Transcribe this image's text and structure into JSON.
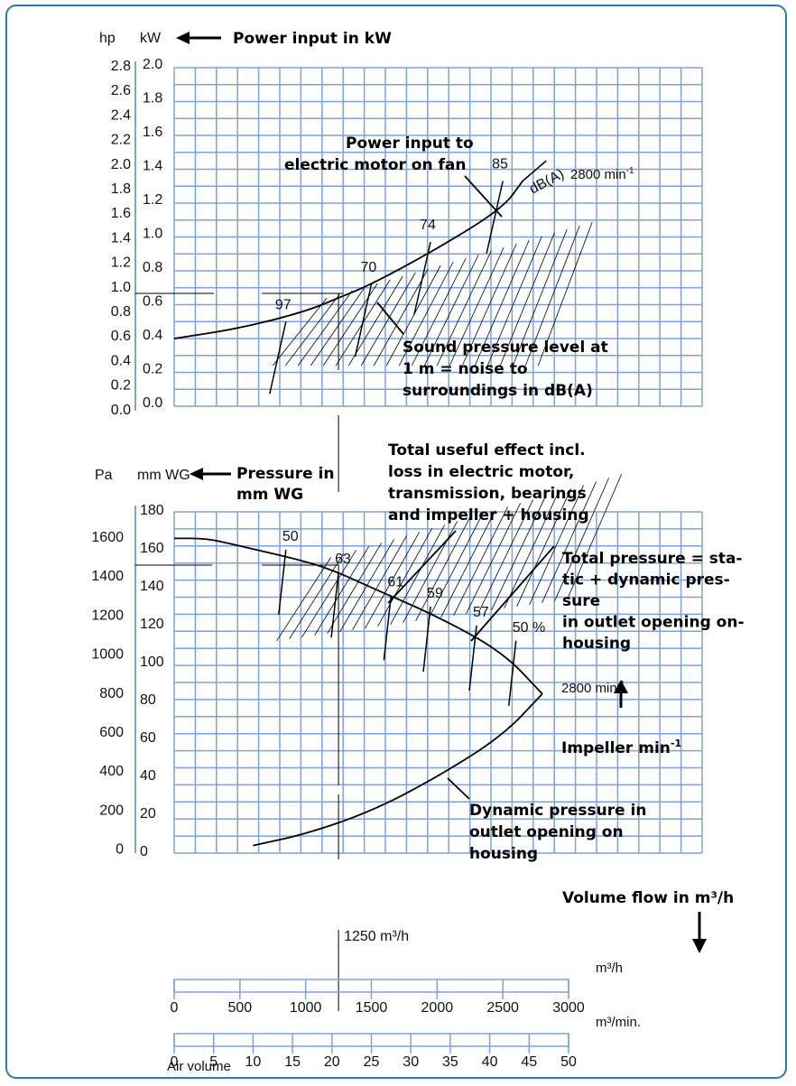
{
  "chart_data": [
    {
      "type": "line",
      "title": "Power input in kW",
      "units": {
        "left_outer": "hp",
        "left_inner": "kW"
      },
      "y_ticks_hp": [
        "2.8",
        "2.6",
        "2.4",
        "2.2",
        "2.0",
        "1.8",
        "1.6",
        "1.4",
        "1.2",
        "1.0",
        "0.8",
        "0.6",
        "0.4",
        "0.2",
        "0.0"
      ],
      "y_ticks_kw": [
        "2.0",
        "1.8",
        "1.6",
        "1.4",
        "1.2",
        "1.0",
        "0.8",
        "0.6",
        "0.4",
        "0.2",
        "0.0"
      ],
      "ylim_kw": [
        0,
        2.0
      ],
      "x_unit": "m³/h",
      "xlim": [
        0,
        3000
      ],
      "grid": true,
      "series": [
        {
          "name": "2800 min-1",
          "x": [
            0,
            500,
            1000,
            1250,
            1500,
            2000,
            2500,
            2650
          ],
          "y": [
            0.4,
            0.46,
            0.56,
            0.64,
            0.72,
            0.93,
            1.17,
            1.33
          ]
        }
      ],
      "sound_levels_dBA": [
        {
          "x": 850,
          "label": "97"
        },
        {
          "x": 1500,
          "label": "70"
        },
        {
          "x": 1950,
          "label": "74"
        },
        {
          "x": 2500,
          "label": "85"
        }
      ],
      "annotations": {
        "curve_unit": "dB(A)",
        "speed_label": "2800 min",
        "speed_sup": "-1",
        "power_callout": [
          "Power input to",
          "electric motor on fan"
        ],
        "sound_callout": [
          "Sound pressure level at",
          "1 m = noise to",
          "surroundings in dB(A)"
        ]
      }
    },
    {
      "type": "line",
      "title": "Pressure in mm WG",
      "units": {
        "left_outer": "Pa",
        "left_inner": "mm WG"
      },
      "y_ticks_pa": [
        "1600",
        "1400",
        "1200",
        "1000",
        "800",
        "600",
        "400",
        "200",
        "0"
      ],
      "y_ticks_mmwg": [
        "180",
        "160",
        "140",
        "120",
        "100",
        "80",
        "60",
        "40",
        "20",
        "0"
      ],
      "ylim_mmwg": [
        0,
        180
      ],
      "x_unit": "m³/h",
      "xlim": [
        0,
        3000
      ],
      "grid": true,
      "series": [
        {
          "name": "Total pressure",
          "x": [
            0,
            250,
            500,
            1000,
            1250,
            1500,
            2000,
            2500,
            2800
          ],
          "y": [
            166,
            166,
            162,
            154,
            148,
            140,
            125,
            106,
            84
          ]
        },
        {
          "name": "Dynamic pressure",
          "x": [
            600,
            1000,
            1500,
            2000,
            2500,
            2800
          ],
          "y": [
            4,
            10,
            22,
            40,
            62,
            84
          ]
        }
      ],
      "efficiency_pct": [
        {
          "x": 850,
          "label": "50"
        },
        {
          "x": 1250,
          "label": "63"
        },
        {
          "x": 1650,
          "label": "61"
        },
        {
          "x": 1950,
          "label": "59"
        },
        {
          "x": 2300,
          "label": "57"
        },
        {
          "x": 2600,
          "label": "50 %"
        }
      ],
      "annotations": {
        "operating_point_x": "1250 m³/h",
        "speed_label": "2800 min",
        "speed_sup": "-1",
        "efficiency_callout": [
          "Total useful effect incl.",
          "loss in electric motor,",
          "transmission, bearings",
          "and impeller + housing"
        ],
        "total_callout": [
          "Total pressure = sta-",
          "tic + dynamic pres-",
          "sure",
          "in outlet opening on-",
          "housing"
        ],
        "impeller_label": "Impeller min",
        "impeller_sup": "-1",
        "dynamic_callout": [
          "Dynamic pressure in",
          "outlet opening on",
          "housing"
        ],
        "volume_title": "Volume flow in m³/h"
      }
    }
  ],
  "bottom_axes": {
    "m3h": {
      "unit": "m³/h",
      "ticks": [
        "0",
        "500",
        "1000",
        "1500",
        "2000",
        "2500",
        "3000"
      ]
    },
    "m3min": {
      "unit": "m³/min.",
      "ticks": [
        "0",
        "5",
        "10",
        "15",
        "20",
        "25",
        "30",
        "35",
        "40",
        "45",
        "50"
      ]
    },
    "caption": "Air volume"
  },
  "colors": {
    "grid": "#7aa3dd",
    "frame": "#2b78c2",
    "ink": "#000000"
  }
}
